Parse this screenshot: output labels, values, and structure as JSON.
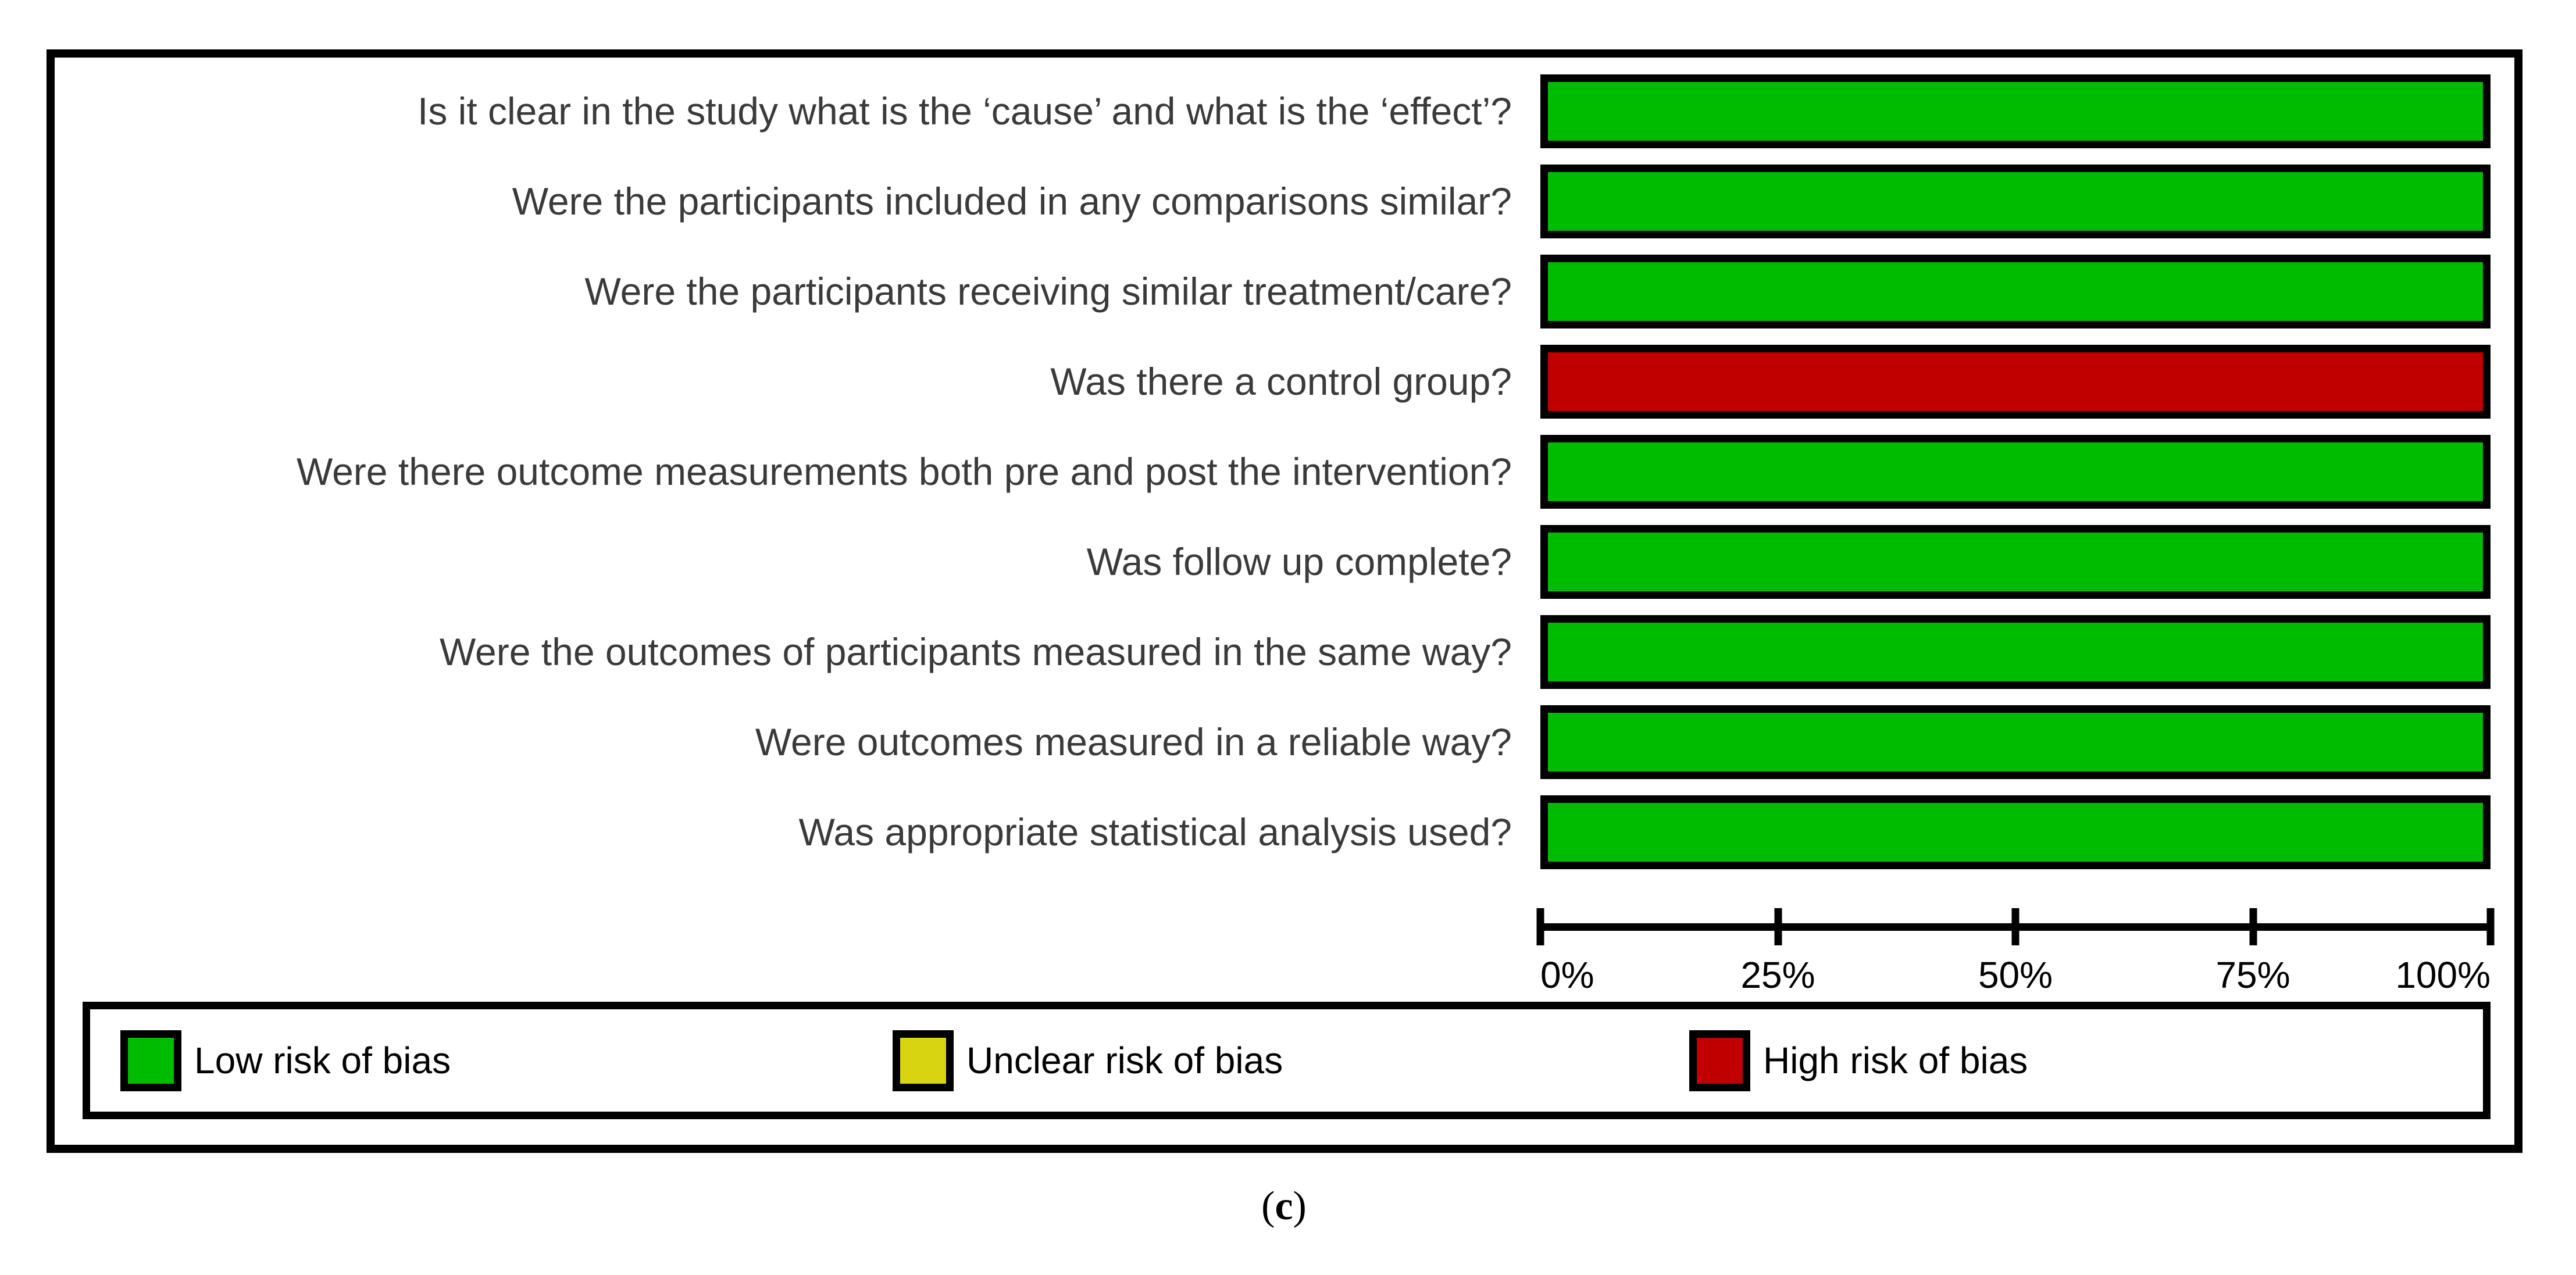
{
  "figure": {
    "caption": {
      "open": "(",
      "letter": "c",
      "close": ")"
    }
  },
  "chart_data": {
    "type": "bar",
    "orientation": "horizontal",
    "title": "",
    "xlabel": "",
    "ylabel": "",
    "xlim": [
      0,
      100
    ],
    "x_ticks": [
      "0%",
      "25%",
      "50%",
      "75%",
      "100%"
    ],
    "grid": false,
    "legend_position": "bottom",
    "categories": [
      "Is it clear in the study what is the ‘cause’ and what is the ‘effect’?",
      "Were the participants included in any comparisons similar?",
      "Were the participants receiving similar treatment/care?",
      "Was there a control group?",
      "Were there outcome measurements both pre and post the intervention?",
      "Was follow up complete?",
      "Were the outcomes of participants measured in the same way?",
      "Were outcomes measured in a reliable way?",
      "Was appropriate statistical analysis used?"
    ],
    "series": [
      {
        "name": "Low risk of bias",
        "color": "#00BC00",
        "values": [
          100,
          100,
          100,
          0,
          100,
          100,
          100,
          100,
          100
        ]
      },
      {
        "name": "Unclear risk of bias",
        "color": "#D9D411",
        "values": [
          0,
          0,
          0,
          0,
          0,
          0,
          0,
          0,
          0
        ]
      },
      {
        "name": "High risk of bias",
        "color": "#C00000",
        "values": [
          0,
          0,
          0,
          100,
          0,
          0,
          0,
          0,
          0
        ]
      }
    ]
  },
  "legend": {
    "items": [
      {
        "label": "Low risk of bias",
        "risk": "low",
        "color": "#00BC00"
      },
      {
        "label": "Unclear risk of bias",
        "risk": "unclear",
        "color": "#D9D411"
      },
      {
        "label": "High risk of bias",
        "risk": "high",
        "color": "#C00000"
      }
    ]
  },
  "colors": {
    "low_risk": "#00BC00",
    "unclear_risk": "#D9D411",
    "high_risk": "#C00000",
    "border": "#000000",
    "question_text": "#3a3a3a"
  }
}
